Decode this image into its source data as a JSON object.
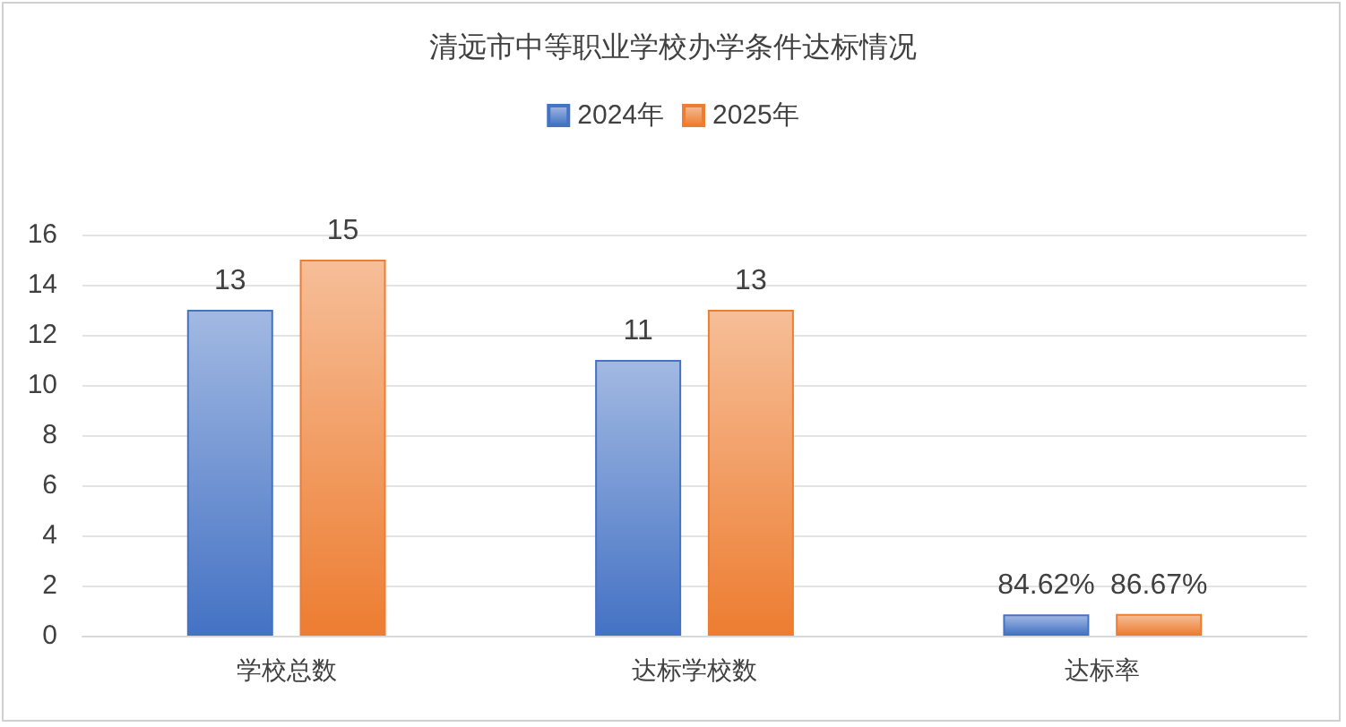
{
  "chart_data": {
    "type": "bar",
    "title": "清远市中等职业学校办学条件达标情况",
    "categories": [
      "学校总数",
      "达标学校数",
      "达标率"
    ],
    "series": [
      {
        "name": "2024年",
        "color": "#4472c4",
        "values": [
          13,
          11,
          0.8462
        ],
        "value_labels": [
          "13",
          "11",
          "84.62%"
        ]
      },
      {
        "name": "2025年",
        "color": "#ed7d31",
        "values": [
          15,
          13,
          0.8667
        ],
        "value_labels": [
          "15",
          "13",
          "86.67%"
        ]
      }
    ],
    "ylim": [
      0,
      16
    ],
    "yticks": [
      0,
      2,
      4,
      6,
      8,
      10,
      12,
      14,
      16
    ],
    "grid": "y",
    "legend": "top"
  }
}
